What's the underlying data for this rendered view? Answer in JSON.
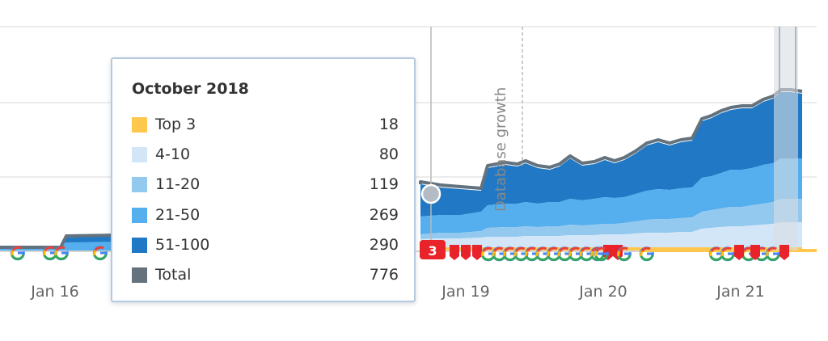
{
  "chart_data": {
    "type": "area",
    "x_ticks": [
      "Jan 16",
      "Jan 19",
      "Jan 20",
      "Jan 21"
    ],
    "annotation": "Database growth",
    "series": [
      {
        "name": "Top 3",
        "color": "#fec84e"
      },
      {
        "name": "4-10",
        "color": "#d2e6f8"
      },
      {
        "name": "11-20",
        "color": "#94c9ef"
      },
      {
        "name": "21-50",
        "color": "#55aeed"
      },
      {
        "name": "51-100",
        "color": "#2179c5"
      },
      {
        "name": "Total",
        "color": "#63727d"
      }
    ],
    "tooltip": {
      "title": "October 2018",
      "rows": [
        {
          "name": "Top 3",
          "value": "18",
          "color": "#fec84e"
        },
        {
          "name": "4-10",
          "value": "80",
          "color": "#d2e6f8"
        },
        {
          "name": "11-20",
          "value": "119",
          "color": "#94c9ef"
        },
        {
          "name": "21-50",
          "value": "269",
          "color": "#55aeed"
        },
        {
          "name": "51-100",
          "value": "290",
          "color": "#2179c5"
        },
        {
          "name": "Total",
          "value": "776",
          "color": "#63727d"
        }
      ]
    },
    "notes_badge": "3",
    "colors": {
      "grid": "#e6e6e6",
      "google_blue": "#4285f4",
      "google_red": "#ea4335",
      "google_yellow": "#fbbc05",
      "google_green": "#34a853",
      "note_red": "#e8232a",
      "total_line": "#63727d"
    }
  }
}
